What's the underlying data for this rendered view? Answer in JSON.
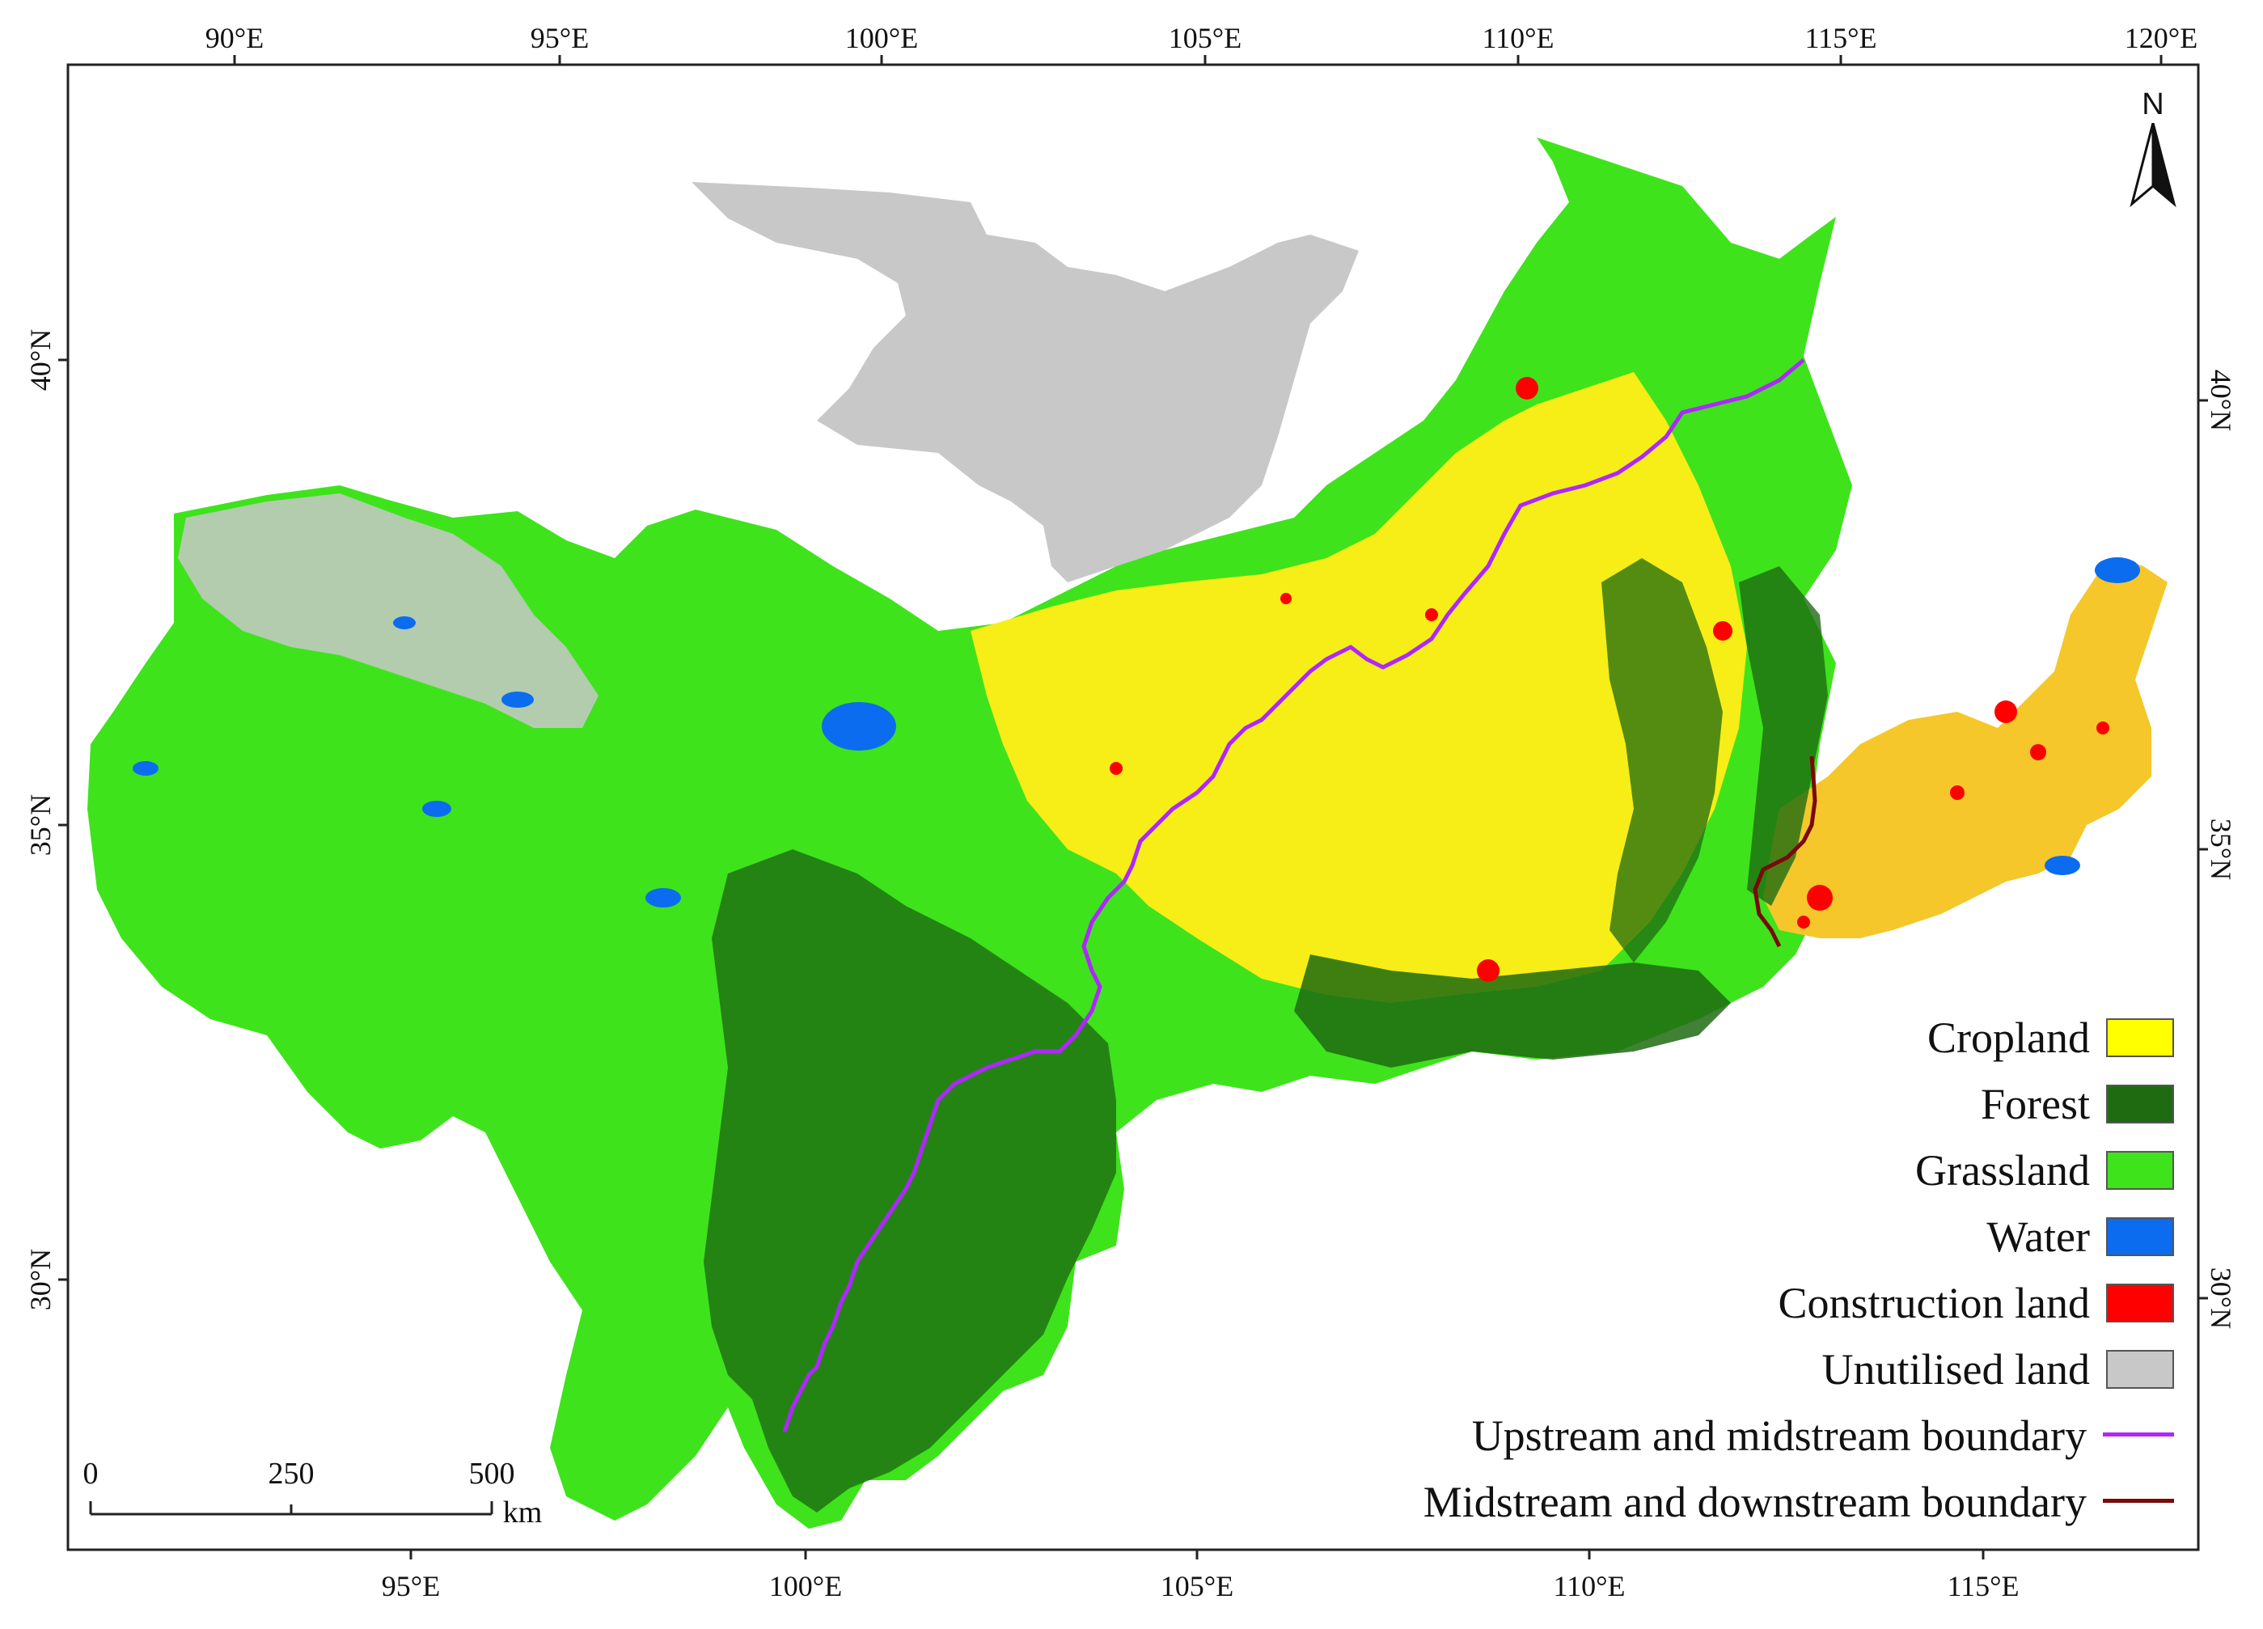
{
  "axes": {
    "top_ticks": [
      "90°E",
      "95°E",
      "100°E",
      "105°E",
      "110°E",
      "115°E",
      "120°E"
    ],
    "bottom_ticks": [
      "95°E",
      "100°E",
      "105°E",
      "110°E",
      "115°E"
    ],
    "left_ticks": [
      "40°N",
      "35°N",
      "30°N"
    ],
    "right_ticks": [
      "40°N",
      "35°N",
      "30°N"
    ]
  },
  "north_arrow": {
    "label": "N",
    "icon": "north-arrow-icon"
  },
  "scale_bar": {
    "labels": [
      "0",
      "250",
      "500"
    ],
    "unit": "km"
  },
  "legend": {
    "items": [
      {
        "label": "Cropland",
        "color": "#ffff00",
        "kind": "swatch"
      },
      {
        "label": "Forest",
        "color": "#1e6b12",
        "kind": "swatch"
      },
      {
        "label": "Grassland",
        "color": "#3ee31c",
        "kind": "swatch"
      },
      {
        "label": "Water",
        "color": "#0b6cf0",
        "kind": "swatch"
      },
      {
        "label": "Construction land",
        "color": "#ff0000",
        "kind": "swatch"
      },
      {
        "label": "Unutilised land",
        "color": "#c8c8c8",
        "kind": "swatch"
      },
      {
        "label": "Upstream and midstream boundary",
        "color": "#b026ff",
        "kind": "line"
      },
      {
        "label": "Midstream and downstream boundary",
        "color": "#7a0a0a",
        "kind": "line"
      }
    ]
  }
}
